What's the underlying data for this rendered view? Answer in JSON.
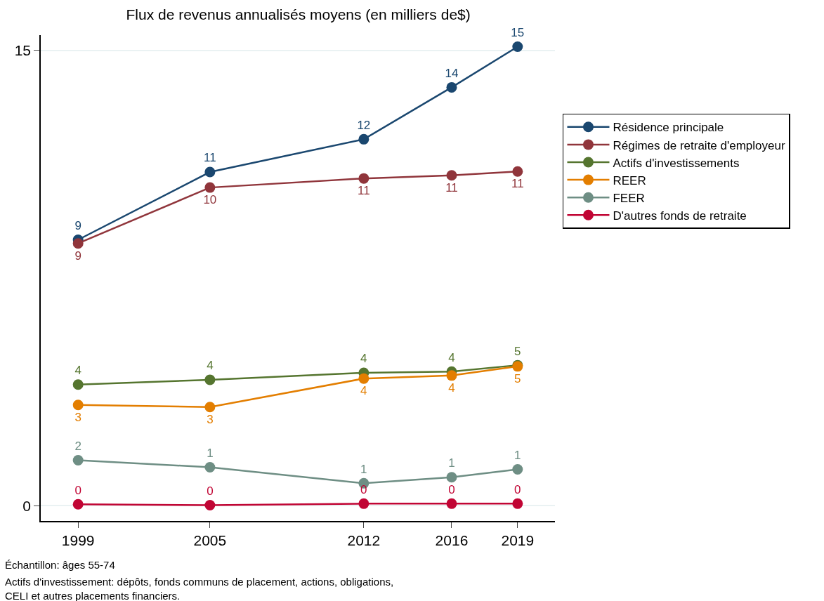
{
  "chart_data": {
    "type": "line",
    "title": "Flux de revenus annualisés moyens (en milliers de$)",
    "x": [
      1999,
      2005,
      2012,
      2016,
      2019
    ],
    "xlim": [
      1997.3,
      2020.7
    ],
    "xticks": [
      1999,
      2005,
      2012,
      2016,
      2019
    ],
    "ylim": [
      -0.5,
      15.5
    ],
    "yticks": [
      0,
      15
    ],
    "grid": "y",
    "legend": "right",
    "marker": "circle",
    "line_style": "solid",
    "series": [
      {
        "name": "Résidence principale",
        "color": "#1a476f",
        "values": [
          8.76,
          10.99,
          12.07,
          13.78,
          15.12
        ],
        "value_labels": [
          "9",
          "11",
          "12",
          "14",
          "15"
        ]
      },
      {
        "name": "Régimes de retraite d'employeur",
        "color": "#90353b",
        "values": [
          8.64,
          10.48,
          10.78,
          10.88,
          11.01
        ],
        "value_labels": [
          "9",
          "10",
          "11",
          "11",
          "11"
        ]
      },
      {
        "name": "Actifs d'investissements",
        "color": "#55752f",
        "values": [
          3.99,
          4.15,
          4.38,
          4.42,
          4.63
        ],
        "value_labels": [
          "4",
          "4",
          "4",
          "4",
          "5"
        ]
      },
      {
        "name": "REER",
        "color": "#e37e00",
        "values": [
          3.32,
          3.25,
          4.19,
          4.29,
          4.59
        ],
        "value_labels": [
          "3",
          "3",
          "4",
          "4",
          "5"
        ]
      },
      {
        "name": "FEER",
        "color": "#6e8e84",
        "values": [
          1.5,
          1.27,
          0.74,
          0.94,
          1.2
        ],
        "value_labels": [
          "2",
          "1",
          "1",
          "1",
          "1"
        ]
      },
      {
        "name": "D'autres fonds de retraite",
        "color": "#c10534",
        "values": [
          0.05,
          0.02,
          0.07,
          0.07,
          0.07
        ],
        "value_labels": [
          "0",
          "0",
          "0",
          "0",
          "0"
        ]
      }
    ],
    "annotations": [
      "Échantillon: âges 55-74",
      "Actifs d'investissement: dépôts, fonds communs de placement, actions, obligations,\nCELI et autres placements financiers."
    ]
  }
}
